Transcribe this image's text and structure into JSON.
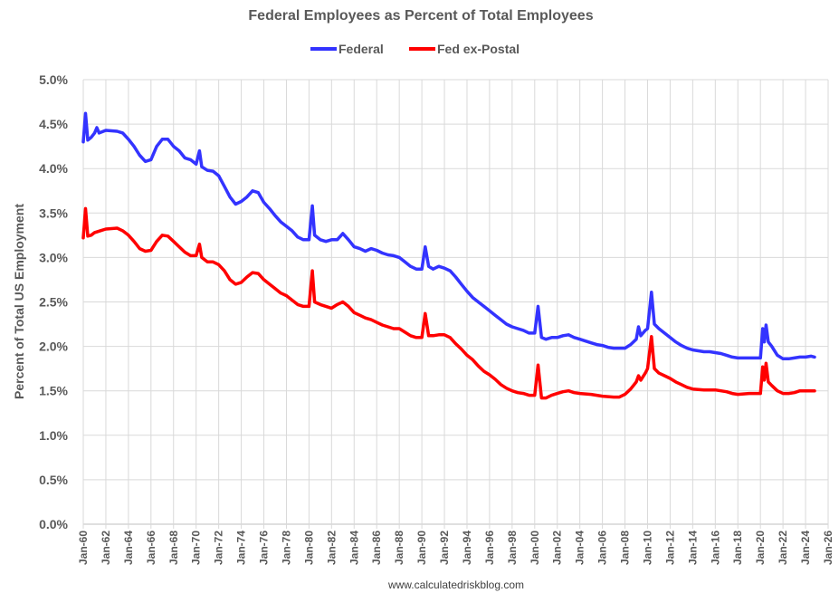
{
  "chart_data": {
    "type": "line",
    "title": "Federal Employees as Percent of Total Employees",
    "xlabel": "",
    "ylabel": "Percent of Total US Employment",
    "ylim": [
      0,
      5.0
    ],
    "xlim": [
      1960,
      2026
    ],
    "grid": true,
    "legend_position": "top-center",
    "y_ticks": [
      "0.0%",
      "0.5%",
      "1.0%",
      "1.5%",
      "2.0%",
      "2.5%",
      "3.0%",
      "3.5%",
      "4.0%",
      "4.5%",
      "5.0%"
    ],
    "x_ticks": [
      "Jan-60",
      "Jan-62",
      "Jan-64",
      "Jan-66",
      "Jan-68",
      "Jan-70",
      "Jan-72",
      "Jan-74",
      "Jan-76",
      "Jan-78",
      "Jan-80",
      "Jan-82",
      "Jan-84",
      "Jan-86",
      "Jan-88",
      "Jan-90",
      "Jan-92",
      "Jan-94",
      "Jan-96",
      "Jan-98",
      "Jan-00",
      "Jan-02",
      "Jan-04",
      "Jan-06",
      "Jan-08",
      "Jan-10",
      "Jan-12",
      "Jan-14",
      "Jan-16",
      "Jan-18",
      "Jan-20",
      "Jan-22",
      "Jan-24",
      "Jan-26"
    ],
    "series": [
      {
        "name": "Federal",
        "color": "#3333ff",
        "points": [
          [
            1960,
            4.3
          ],
          [
            1960.2,
            4.62
          ],
          [
            1960.4,
            4.32
          ],
          [
            1960.7,
            4.35
          ],
          [
            1961,
            4.4
          ],
          [
            1961.2,
            4.46
          ],
          [
            1961.4,
            4.4
          ],
          [
            1962,
            4.43
          ],
          [
            1963,
            4.42
          ],
          [
            1963.5,
            4.4
          ],
          [
            1964,
            4.33
          ],
          [
            1964.5,
            4.25
          ],
          [
            1965,
            4.15
          ],
          [
            1965.5,
            4.08
          ],
          [
            1966,
            4.1
          ],
          [
            1966.5,
            4.25
          ],
          [
            1967,
            4.33
          ],
          [
            1967.5,
            4.33
          ],
          [
            1968,
            4.25
          ],
          [
            1968.5,
            4.2
          ],
          [
            1969,
            4.12
          ],
          [
            1969.5,
            4.1
          ],
          [
            1970,
            4.05
          ],
          [
            1970.3,
            4.2
          ],
          [
            1970.5,
            4.02
          ],
          [
            1971,
            3.98
          ],
          [
            1971.5,
            3.97
          ],
          [
            1972,
            3.92
          ],
          [
            1972.5,
            3.8
          ],
          [
            1973,
            3.68
          ],
          [
            1973.5,
            3.6
          ],
          [
            1974,
            3.63
          ],
          [
            1974.5,
            3.68
          ],
          [
            1975,
            3.75
          ],
          [
            1975.5,
            3.73
          ],
          [
            1976,
            3.62
          ],
          [
            1976.5,
            3.55
          ],
          [
            1977,
            3.47
          ],
          [
            1977.5,
            3.4
          ],
          [
            1978,
            3.35
          ],
          [
            1978.5,
            3.3
          ],
          [
            1979,
            3.23
          ],
          [
            1979.5,
            3.2
          ],
          [
            1980,
            3.2
          ],
          [
            1980.3,
            3.58
          ],
          [
            1980.5,
            3.25
          ],
          [
            1981,
            3.2
          ],
          [
            1981.5,
            3.18
          ],
          [
            1982,
            3.2
          ],
          [
            1982.5,
            3.2
          ],
          [
            1983,
            3.27
          ],
          [
            1983.5,
            3.2
          ],
          [
            1984,
            3.12
          ],
          [
            1984.5,
            3.1
          ],
          [
            1985,
            3.07
          ],
          [
            1985.5,
            3.1
          ],
          [
            1986,
            3.08
          ],
          [
            1986.5,
            3.05
          ],
          [
            1987,
            3.03
          ],
          [
            1987.5,
            3.02
          ],
          [
            1988,
            3.0
          ],
          [
            1988.5,
            2.95
          ],
          [
            1989,
            2.9
          ],
          [
            1989.5,
            2.87
          ],
          [
            1990,
            2.87
          ],
          [
            1990.3,
            3.12
          ],
          [
            1990.6,
            2.9
          ],
          [
            1991,
            2.87
          ],
          [
            1991.5,
            2.9
          ],
          [
            1992,
            2.88
          ],
          [
            1992.5,
            2.85
          ],
          [
            1993,
            2.78
          ],
          [
            1993.5,
            2.7
          ],
          [
            1994,
            2.62
          ],
          [
            1994.5,
            2.55
          ],
          [
            1995,
            2.5
          ],
          [
            1995.5,
            2.45
          ],
          [
            1996,
            2.4
          ],
          [
            1996.5,
            2.35
          ],
          [
            1997,
            2.3
          ],
          [
            1997.5,
            2.25
          ],
          [
            1998,
            2.22
          ],
          [
            1998.5,
            2.2
          ],
          [
            1999,
            2.18
          ],
          [
            1999.5,
            2.15
          ],
          [
            2000,
            2.15
          ],
          [
            2000.3,
            2.45
          ],
          [
            2000.6,
            2.1
          ],
          [
            2001,
            2.08
          ],
          [
            2001.5,
            2.1
          ],
          [
            2002,
            2.1
          ],
          [
            2002.5,
            2.12
          ],
          [
            2003,
            2.13
          ],
          [
            2003.5,
            2.1
          ],
          [
            2004,
            2.08
          ],
          [
            2004.5,
            2.06
          ],
          [
            2005,
            2.04
          ],
          [
            2005.5,
            2.02
          ],
          [
            2006,
            2.01
          ],
          [
            2006.5,
            1.99
          ],
          [
            2007,
            1.98
          ],
          [
            2007.5,
            1.98
          ],
          [
            2008,
            1.98
          ],
          [
            2008.5,
            2.02
          ],
          [
            2009,
            2.08
          ],
          [
            2009.2,
            2.22
          ],
          [
            2009.4,
            2.12
          ],
          [
            2009.8,
            2.18
          ],
          [
            2010,
            2.2
          ],
          [
            2010.35,
            2.61
          ],
          [
            2010.6,
            2.25
          ],
          [
            2011,
            2.2
          ],
          [
            2011.5,
            2.15
          ],
          [
            2012,
            2.1
          ],
          [
            2012.5,
            2.05
          ],
          [
            2013,
            2.01
          ],
          [
            2013.5,
            1.98
          ],
          [
            2014,
            1.96
          ],
          [
            2014.5,
            1.95
          ],
          [
            2015,
            1.94
          ],
          [
            2015.5,
            1.94
          ],
          [
            2016,
            1.93
          ],
          [
            2016.5,
            1.92
          ],
          [
            2017,
            1.9
          ],
          [
            2017.5,
            1.88
          ],
          [
            2018,
            1.87
          ],
          [
            2019,
            1.87
          ],
          [
            2020,
            1.87
          ],
          [
            2020.2,
            2.2
          ],
          [
            2020.35,
            2.05
          ],
          [
            2020.5,
            2.24
          ],
          [
            2020.7,
            2.05
          ],
          [
            2021,
            2.0
          ],
          [
            2021.5,
            1.9
          ],
          [
            2022,
            1.86
          ],
          [
            2022.5,
            1.86
          ],
          [
            2023,
            1.87
          ],
          [
            2023.5,
            1.88
          ],
          [
            2024,
            1.88
          ],
          [
            2024.5,
            1.89
          ],
          [
            2024.8,
            1.88
          ]
        ]
      },
      {
        "name": "Fed ex-Postal",
        "color": "#ff0000",
        "points": [
          [
            1960,
            3.22
          ],
          [
            1960.2,
            3.55
          ],
          [
            1960.4,
            3.24
          ],
          [
            1960.7,
            3.25
          ],
          [
            1961,
            3.28
          ],
          [
            1961.5,
            3.3
          ],
          [
            1962,
            3.32
          ],
          [
            1963,
            3.33
          ],
          [
            1963.5,
            3.3
          ],
          [
            1964,
            3.25
          ],
          [
            1964.5,
            3.18
          ],
          [
            1965,
            3.1
          ],
          [
            1965.5,
            3.07
          ],
          [
            1966,
            3.08
          ],
          [
            1966.5,
            3.18
          ],
          [
            1967,
            3.25
          ],
          [
            1967.5,
            3.24
          ],
          [
            1968,
            3.18
          ],
          [
            1968.5,
            3.12
          ],
          [
            1969,
            3.06
          ],
          [
            1969.5,
            3.02
          ],
          [
            1970,
            3.02
          ],
          [
            1970.3,
            3.15
          ],
          [
            1970.5,
            3.0
          ],
          [
            1971,
            2.95
          ],
          [
            1971.5,
            2.95
          ],
          [
            1972,
            2.92
          ],
          [
            1972.5,
            2.85
          ],
          [
            1973,
            2.75
          ],
          [
            1973.5,
            2.7
          ],
          [
            1974,
            2.72
          ],
          [
            1974.5,
            2.78
          ],
          [
            1975,
            2.83
          ],
          [
            1975.5,
            2.82
          ],
          [
            1976,
            2.75
          ],
          [
            1976.5,
            2.7
          ],
          [
            1977,
            2.65
          ],
          [
            1977.5,
            2.6
          ],
          [
            1978,
            2.57
          ],
          [
            1978.5,
            2.52
          ],
          [
            1979,
            2.47
          ],
          [
            1979.5,
            2.45
          ],
          [
            1980,
            2.45
          ],
          [
            1980.3,
            2.85
          ],
          [
            1980.5,
            2.5
          ],
          [
            1981,
            2.47
          ],
          [
            1981.5,
            2.45
          ],
          [
            1982,
            2.43
          ],
          [
            1982.5,
            2.47
          ],
          [
            1983,
            2.5
          ],
          [
            1983.5,
            2.45
          ],
          [
            1984,
            2.38
          ],
          [
            1984.5,
            2.35
          ],
          [
            1985,
            2.32
          ],
          [
            1985.5,
            2.3
          ],
          [
            1986,
            2.27
          ],
          [
            1986.5,
            2.24
          ],
          [
            1987,
            2.22
          ],
          [
            1987.5,
            2.2
          ],
          [
            1988,
            2.2
          ],
          [
            1988.5,
            2.16
          ],
          [
            1989,
            2.12
          ],
          [
            1989.5,
            2.1
          ],
          [
            1990,
            2.1
          ],
          [
            1990.3,
            2.37
          ],
          [
            1990.6,
            2.12
          ],
          [
            1991,
            2.12
          ],
          [
            1991.5,
            2.13
          ],
          [
            1992,
            2.13
          ],
          [
            1992.5,
            2.1
          ],
          [
            1993,
            2.03
          ],
          [
            1993.5,
            1.97
          ],
          [
            1994,
            1.9
          ],
          [
            1994.5,
            1.85
          ],
          [
            1995,
            1.78
          ],
          [
            1995.5,
            1.72
          ],
          [
            1996,
            1.68
          ],
          [
            1996.5,
            1.63
          ],
          [
            1997,
            1.57
          ],
          [
            1997.5,
            1.53
          ],
          [
            1998,
            1.5
          ],
          [
            1998.5,
            1.48
          ],
          [
            1999,
            1.47
          ],
          [
            1999.5,
            1.45
          ],
          [
            2000,
            1.45
          ],
          [
            2000.3,
            1.79
          ],
          [
            2000.6,
            1.42
          ],
          [
            2001,
            1.42
          ],
          [
            2001.5,
            1.45
          ],
          [
            2002,
            1.47
          ],
          [
            2002.5,
            1.49
          ],
          [
            2003,
            1.5
          ],
          [
            2003.5,
            1.48
          ],
          [
            2004,
            1.47
          ],
          [
            2005,
            1.46
          ],
          [
            2006,
            1.44
          ],
          [
            2007,
            1.43
          ],
          [
            2007.5,
            1.43
          ],
          [
            2008,
            1.46
          ],
          [
            2008.5,
            1.52
          ],
          [
            2009,
            1.6
          ],
          [
            2009.2,
            1.67
          ],
          [
            2009.4,
            1.62
          ],
          [
            2009.8,
            1.7
          ],
          [
            2010,
            1.75
          ],
          [
            2010.35,
            2.11
          ],
          [
            2010.6,
            1.75
          ],
          [
            2011,
            1.7
          ],
          [
            2011.5,
            1.67
          ],
          [
            2012,
            1.64
          ],
          [
            2012.5,
            1.6
          ],
          [
            2013,
            1.57
          ],
          [
            2013.5,
            1.54
          ],
          [
            2014,
            1.52
          ],
          [
            2015,
            1.51
          ],
          [
            2016,
            1.51
          ],
          [
            2016.5,
            1.5
          ],
          [
            2017,
            1.49
          ],
          [
            2017.5,
            1.47
          ],
          [
            2018,
            1.46
          ],
          [
            2019,
            1.47
          ],
          [
            2020,
            1.47
          ],
          [
            2020.2,
            1.77
          ],
          [
            2020.35,
            1.62
          ],
          [
            2020.5,
            1.81
          ],
          [
            2020.7,
            1.6
          ],
          [
            2021,
            1.56
          ],
          [
            2021.5,
            1.5
          ],
          [
            2022,
            1.47
          ],
          [
            2022.5,
            1.47
          ],
          [
            2023,
            1.48
          ],
          [
            2023.5,
            1.5
          ],
          [
            2024,
            1.5
          ],
          [
            2024.8,
            1.5
          ]
        ]
      }
    ]
  },
  "footer": "www.calculatedriskblog.com"
}
